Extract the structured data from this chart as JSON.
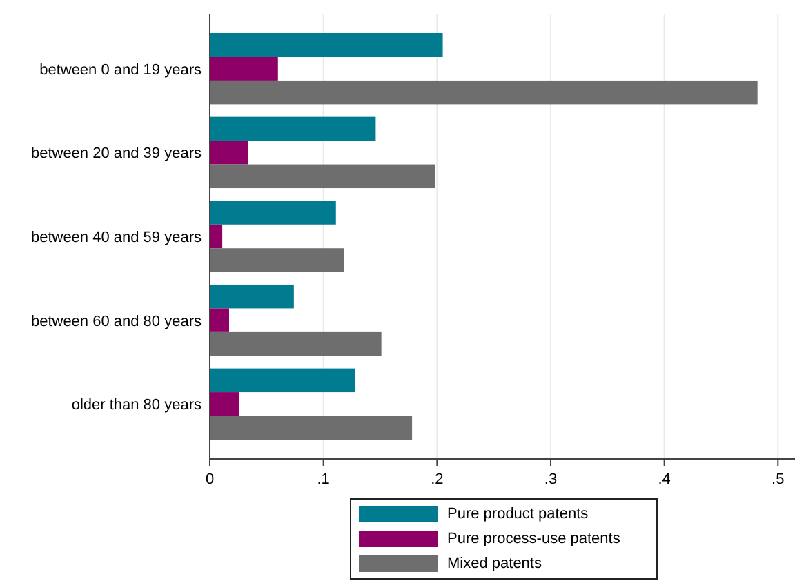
{
  "chart_data": {
    "type": "bar",
    "orientation": "horizontal",
    "categories": [
      "between 0 and 19 years",
      "between 20 and 39 years",
      "between 40 and 59 years",
      "between 60 and 80 years",
      "older than 80 years"
    ],
    "series": [
      {
        "name": "Pure product patents",
        "color": "#007b8f",
        "values": [
          0.205,
          0.146,
          0.111,
          0.074,
          0.128
        ]
      },
      {
        "name": "Pure process-use patents",
        "color": "#8f0066",
        "values": [
          0.06,
          0.034,
          0.011,
          0.017,
          0.026
        ]
      },
      {
        "name": "Mixed patents",
        "color": "#6e6e6e",
        "values": [
          0.482,
          0.198,
          0.118,
          0.151,
          0.178
        ]
      }
    ],
    "xlim": [
      0,
      0.515
    ],
    "xticks": [
      0,
      {
        "value": 0.1,
        "label": ".1"
      },
      {
        "value": 0.2,
        "label": ".2"
      },
      {
        "value": 0.3,
        "label": ".3"
      },
      {
        "value": 0.4,
        "label": ".4"
      },
      {
        "value": 0.5,
        "label": ".5"
      }
    ],
    "grid": "x",
    "legend": "bottom"
  }
}
